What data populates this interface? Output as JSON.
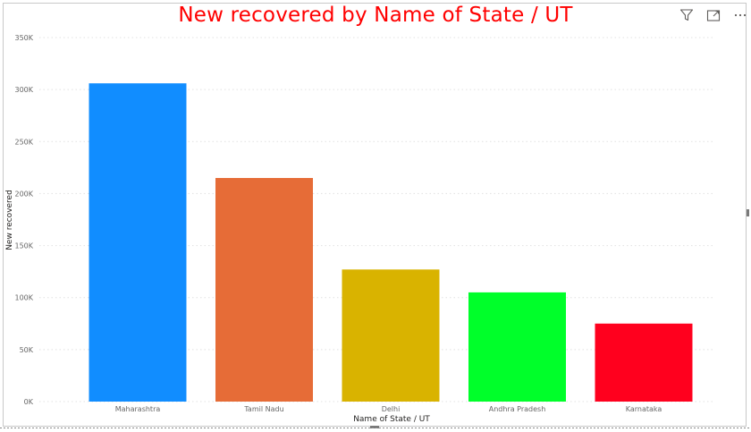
{
  "toolbar": {
    "filter_icon": "filter-icon",
    "focus_icon": "focus-mode-icon",
    "more_icon": "more-options-icon"
  },
  "chart_data": {
    "type": "bar",
    "title": "New recovered by Name of State / UT",
    "xlabel": "Name of State / UT",
    "ylabel": "New recovered",
    "categories": [
      "Maharashtra",
      "Tamil Nadu",
      "Delhi",
      "Andhra Pradesh",
      "Karnataka"
    ],
    "values": [
      306000,
      215000,
      127000,
      105000,
      75000
    ],
    "colors": [
      "#118dff",
      "#e66c37",
      "#d9b300",
      "#00ff2a",
      "#ff001e"
    ],
    "ylim": [
      0,
      350000
    ],
    "yticks": [
      0,
      50000,
      100000,
      150000,
      200000,
      250000,
      300000,
      350000
    ],
    "ytick_labels": [
      "0K",
      "50K",
      "100K",
      "150K",
      "200K",
      "250K",
      "300K",
      "350K"
    ],
    "grid": true,
    "title_color": "#ff0000"
  }
}
